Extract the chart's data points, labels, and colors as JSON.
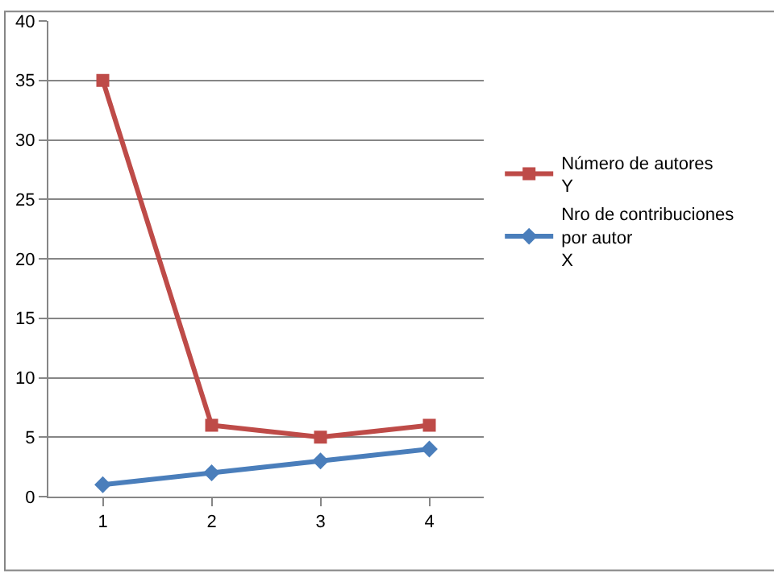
{
  "chart_data": {
    "type": "line",
    "categories": [
      "1",
      "2",
      "3",
      "4"
    ],
    "series": [
      {
        "name": "Número de autores\nY",
        "color": "#be4b48",
        "marker": "square",
        "values": [
          35,
          6,
          5,
          6
        ]
      },
      {
        "name": "Nro de contribuciones\npor autor\nX",
        "color": "#4a7ebb",
        "marker": "diamond",
        "values": [
          1,
          2,
          3,
          4
        ]
      }
    ],
    "ylim": [
      0,
      40
    ],
    "yticks": [
      0,
      5,
      10,
      15,
      20,
      25,
      30,
      35,
      40
    ],
    "grid": "y",
    "legend": "right",
    "line_style": "solid"
  }
}
